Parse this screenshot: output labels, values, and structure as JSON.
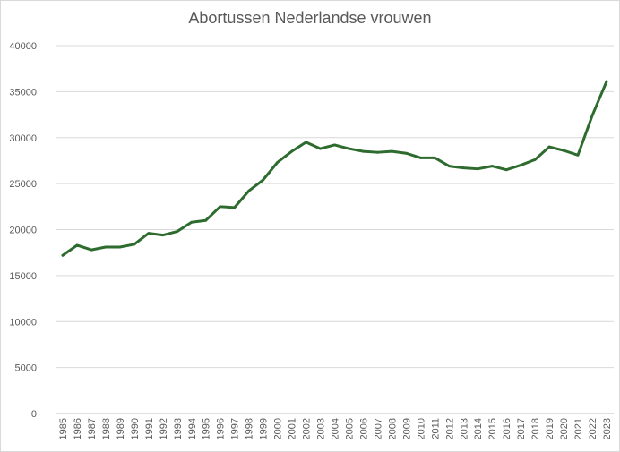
{
  "chart_data": {
    "type": "line",
    "title": "Abortussen Nederlandse vrouwen",
    "xlabel": "",
    "ylabel": "",
    "ylim": [
      0,
      40000
    ],
    "y_ticks": [
      0,
      5000,
      10000,
      15000,
      20000,
      25000,
      30000,
      35000,
      40000
    ],
    "grid": true,
    "legend": "none",
    "line_color": "#2e6b2e",
    "categories": [
      "1985",
      "1986",
      "1987",
      "1988",
      "1989",
      "1990",
      "1991",
      "1992",
      "1993",
      "1994",
      "1995",
      "1996",
      "1997",
      "1998",
      "1999",
      "2000",
      "2001",
      "2002",
      "2003",
      "2004",
      "2005",
      "2006",
      "2007",
      "2008",
      "2009",
      "2010",
      "2011",
      "2012",
      "2013",
      "2014",
      "2015",
      "2016",
      "2017",
      "2018",
      "2019",
      "2020",
      "2021",
      "2022",
      "2023"
    ],
    "values": [
      17200,
      18300,
      17800,
      18100,
      18100,
      18400,
      19600,
      19400,
      19800,
      20800,
      21000,
      22500,
      22400,
      24200,
      25400,
      27300,
      28500,
      29500,
      28800,
      29200,
      28800,
      28500,
      28400,
      28500,
      28300,
      27800,
      27800,
      26900,
      26700,
      26600,
      26900,
      26500,
      27000,
      27600,
      29000,
      28600,
      28100,
      32400,
      36100
    ]
  }
}
